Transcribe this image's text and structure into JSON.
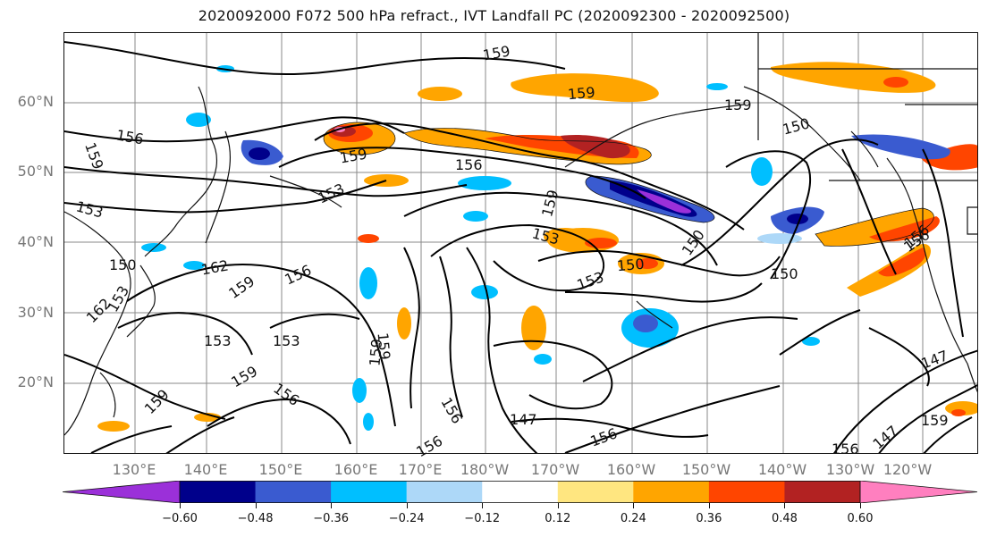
{
  "title": "2020092000 F072 500 hPa refract., IVT Landfall PC (2020092300 - 2020092500)",
  "axes": {
    "lat_labels": [
      "60°N",
      "50°N",
      "40°N",
      "30°N",
      "20°N"
    ],
    "lon_labels": [
      "130°E",
      "140°E",
      "150°E",
      "160°E",
      "170°E",
      "180°W",
      "170°W",
      "160°W",
      "150°W",
      "140°W",
      "130°W",
      "120°W"
    ]
  },
  "contour_labels": [
    "159",
    "156",
    "159",
    "153",
    "150",
    "159",
    "162",
    "156",
    "153",
    "159",
    "159",
    "153",
    "150",
    "150",
    "159",
    "150",
    "147",
    "159",
    "156",
    "156",
    "159",
    "153",
    "156",
    "150",
    "159",
    "153",
    "156",
    "147",
    "159",
    "147",
    "156",
    "153",
    "159",
    "156",
    "159",
    "156",
    "162",
    "153",
    "156"
  ],
  "colorbar": {
    "tick_labels": [
      "−0.60",
      "−0.48",
      "−0.36",
      "−0.24",
      "−0.12",
      "0.12",
      "0.24",
      "0.36",
      "0.48",
      "0.60"
    ],
    "colors": [
      "#9b30d9",
      "#00008b",
      "#3a5bd0",
      "#00bfff",
      "#add8f8",
      "#ffffff",
      "#ffe680",
      "#ffa500",
      "#ff4500",
      "#b22222",
      "#ff7fbf"
    ],
    "bounds": [
      -0.6,
      -0.48,
      -0.36,
      -0.24,
      -0.12,
      0.12,
      0.24,
      0.36,
      0.48,
      0.6
    ]
  },
  "grid": true,
  "map_colors": {
    "contour": "#000000",
    "coast": "#111111",
    "grid": "#8a8a8a"
  }
}
